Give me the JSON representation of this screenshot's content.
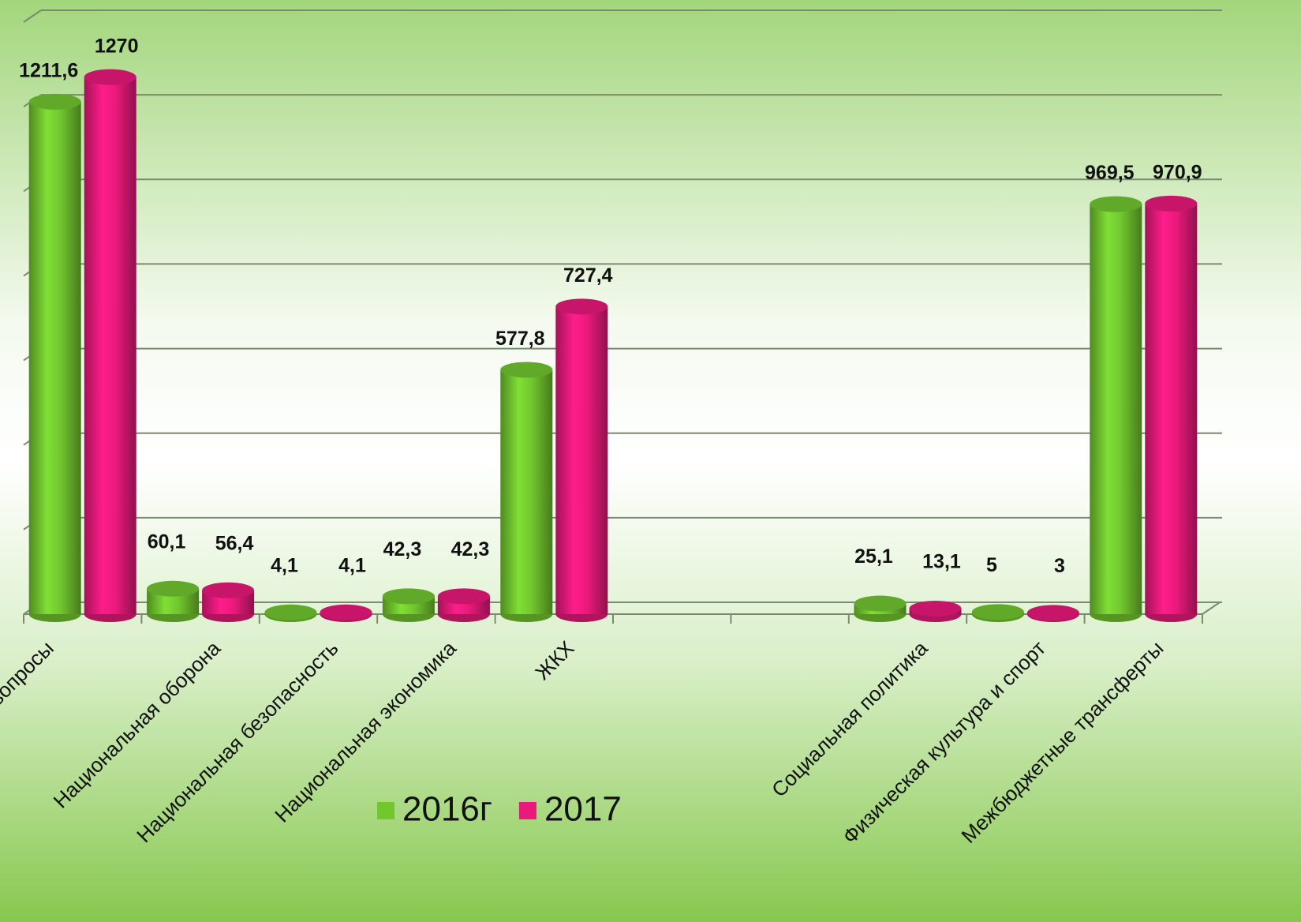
{
  "chart_data": {
    "type": "bar",
    "categories": [
      "е вопросы",
      "Национальная оборона",
      "Национальная безопасность",
      "Национальная экономика",
      "ЖКХ",
      null,
      null,
      "Социальная политика",
      "Физическая культура и спорт",
      "Межбюджетные трансферты"
    ],
    "series": [
      {
        "name": "2016г",
        "color": "#72c72f",
        "values": [
          1211.6,
          60.1,
          4.1,
          42.3,
          577.8,
          null,
          null,
          25.1,
          5,
          969.5
        ],
        "value_labels": [
          "1211,6",
          "60,1",
          "4,1",
          "42,3",
          "577,8",
          null,
          null,
          "25,1",
          "5",
          "969,5"
        ]
      },
      {
        "name": "2017",
        "color": "#ea1a7c",
        "values": [
          1270,
          56.4,
          4.1,
          42.3,
          727.4,
          null,
          null,
          13.1,
          3,
          970.9
        ],
        "value_labels": [
          "1270",
          "56,4",
          "4,1",
          "42,3",
          "727,4",
          null,
          null,
          "13,1",
          "3",
          "970,9"
        ]
      }
    ],
    "ylim": [
      0,
      1400
    ],
    "yticks": [
      0,
      200,
      400,
      600,
      800,
      1000,
      1200,
      1400
    ],
    "grid": true,
    "legend": "bottom"
  }
}
